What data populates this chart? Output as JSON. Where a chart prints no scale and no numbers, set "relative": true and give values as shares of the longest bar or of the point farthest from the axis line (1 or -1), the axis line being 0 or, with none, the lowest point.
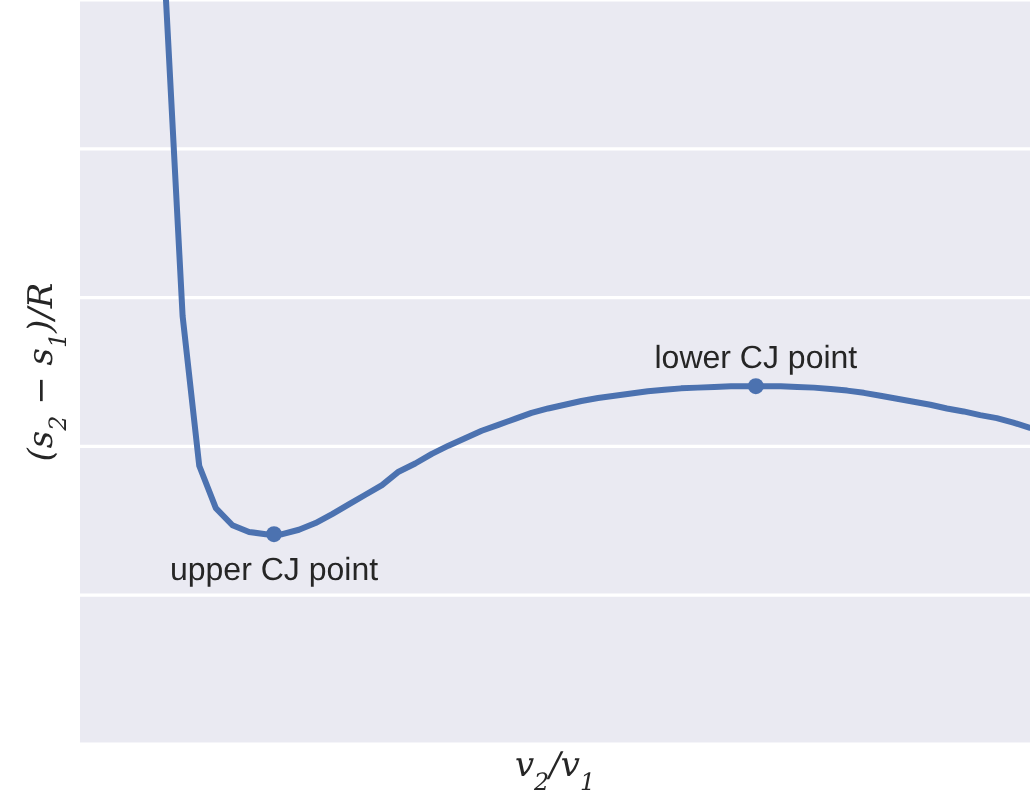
{
  "chart_data": {
    "type": "line",
    "relative": true,
    "xlabel": "v$_{2}$/v$_{1}$",
    "ylabel": "(s$_{2}$ − s$_{1}$)/R",
    "categories": [
      null,
      null,
      null,
      null,
      null,
      null,
      null,
      null,
      null,
      null,
      null,
      null,
      null,
      null,
      null,
      null,
      null,
      null,
      null,
      null,
      null,
      null,
      null,
      null,
      null,
      null,
      null,
      null,
      null,
      null,
      null,
      null,
      null,
      null,
      null,
      null,
      null,
      null,
      null,
      null,
      null,
      null,
      null,
      null,
      null,
      null,
      null,
      null,
      null,
      null,
      null,
      null,
      null
    ],
    "grid": "y",
    "series": [
      {
        "color": "#4c72b0",
        "marker": "none",
        "values": [
          1,
          0.575,
          0.374,
          0.317,
          0.294,
          0.285,
          0.282,
          0.282,
          0.288,
          0.297,
          0.309,
          0.322,
          0.335,
          0.348,
          0.366,
          0.377,
          0.39,
          0.401,
          0.411,
          0.421,
          0.429,
          0.437,
          0.445,
          0.451,
          0.456,
          0.461,
          0.465,
          0.468,
          0.471,
          0.474,
          0.476,
          0.478,
          0.479,
          0.48,
          0.481,
          0.481,
          0.481,
          0.481,
          0.48,
          0.479,
          0.477,
          0.475,
          0.472,
          0.468,
          0.464,
          0.46,
          0.456,
          0.451,
          0.447,
          0.442,
          0.438,
          0.432,
          0.425
        ]
      }
    ],
    "annotations": [
      {
        "text": "upper CJ point",
        "y": 0.282
      },
      {
        "text": "lower CJ point",
        "y": 0.481
      }
    ]
  }
}
